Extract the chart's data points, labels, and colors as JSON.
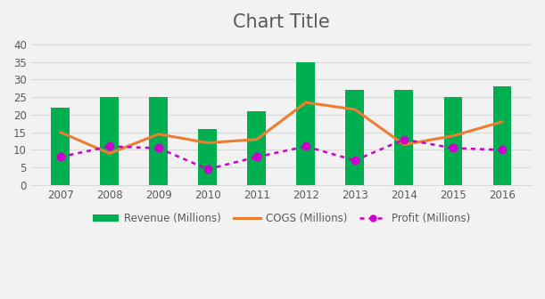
{
  "years": [
    2007,
    2008,
    2009,
    2010,
    2011,
    2012,
    2013,
    2014,
    2015,
    2016
  ],
  "revenue": [
    22,
    25,
    25,
    16,
    21,
    35,
    27,
    27,
    25,
    28
  ],
  "cogs": [
    15,
    9,
    14.5,
    12,
    13,
    23.5,
    21.5,
    11.5,
    14,
    18
  ],
  "profit": [
    8,
    11,
    10.5,
    4.5,
    8,
    11,
    7,
    13,
    10.5,
    10
  ],
  "bar_color": "#00b050",
  "cogs_color": "#ed7d31",
  "profit_color": "#cc00cc",
  "background_color": "#f2f2f2",
  "plot_bg_color": "#f2f2f2",
  "title": "Chart Title",
  "title_fontsize": 15,
  "title_color": "#595959",
  "legend_labels": [
    "Revenue (Millions)",
    "COGS (Millions)",
    "Profit (Millions)"
  ],
  "ylim": [
    0,
    42
  ],
  "yticks": [
    0,
    5,
    10,
    15,
    20,
    25,
    30,
    35,
    40
  ],
  "grid_color": "#d9d9d9",
  "bar_width": 0.38,
  "tick_fontsize": 8.5,
  "tick_color": "#595959"
}
